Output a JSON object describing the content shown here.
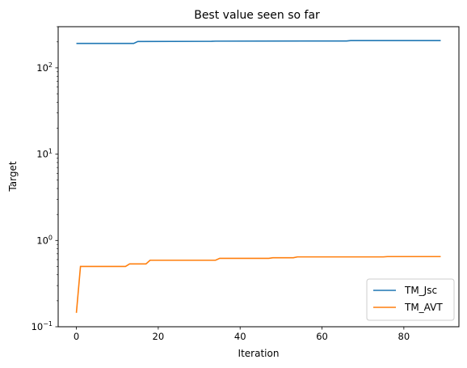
{
  "chart_data": {
    "type": "line",
    "title": "Best value seen so far",
    "xlabel": "Iteration",
    "ylabel": "Target",
    "yscale": "log",
    "xlim": [
      -4.45,
      93.45
    ],
    "ylim": [
      0.1,
      300
    ],
    "xticks": [
      {
        "value": 0,
        "label": "0"
      },
      {
        "value": 20,
        "label": "20"
      },
      {
        "value": 40,
        "label": "40"
      },
      {
        "value": 60,
        "label": "60"
      },
      {
        "value": 80,
        "label": "80"
      }
    ],
    "yticks": [
      {
        "value": 0.1,
        "base": "10",
        "exp": "−1"
      },
      {
        "value": 1,
        "base": "10",
        "exp": "0"
      },
      {
        "value": 10,
        "base": "10",
        "exp": "1"
      },
      {
        "value": 100,
        "base": "10",
        "exp": "2"
      }
    ],
    "grid": false,
    "legend_position": "bottom-right",
    "series": [
      {
        "name": "TM_Jsc",
        "color": "#1f77b4",
        "points": [
          [
            0,
            192
          ],
          [
            14,
            192
          ],
          [
            15,
            202
          ],
          [
            33,
            203
          ],
          [
            34,
            204
          ],
          [
            66,
            205
          ],
          [
            67,
            207
          ],
          [
            89,
            207
          ]
        ]
      },
      {
        "name": "TM_AVT",
        "color": "#ff7f0e",
        "points": [
          [
            0,
            0.145
          ],
          [
            1,
            0.5
          ],
          [
            12,
            0.5
          ],
          [
            13,
            0.535
          ],
          [
            17,
            0.535
          ],
          [
            18,
            0.59
          ],
          [
            34,
            0.59
          ],
          [
            35,
            0.62
          ],
          [
            47,
            0.62
          ],
          [
            48,
            0.63
          ],
          [
            53,
            0.63
          ],
          [
            54,
            0.645
          ],
          [
            75,
            0.645
          ],
          [
            76,
            0.65
          ],
          [
            89,
            0.65
          ]
        ]
      }
    ]
  }
}
